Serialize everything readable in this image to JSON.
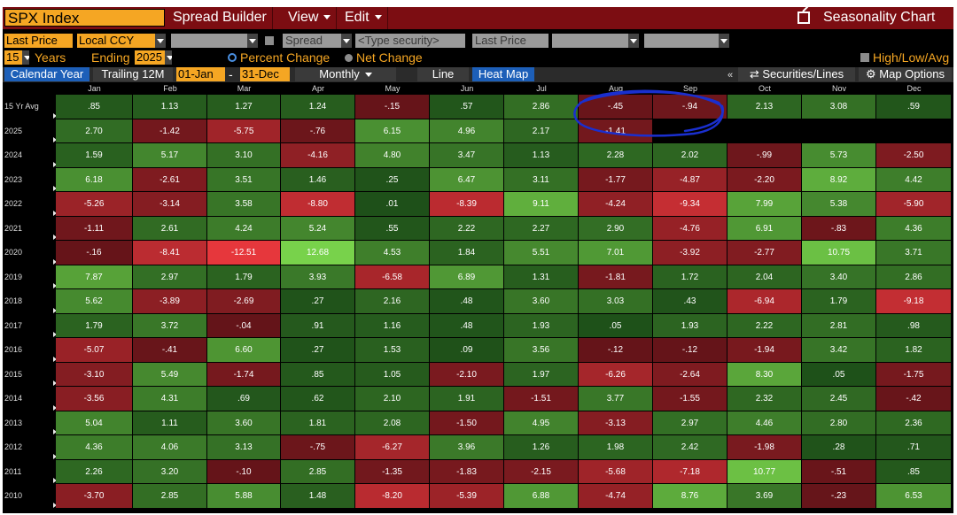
{
  "header": {
    "ticker": "SPX Index",
    "menus": [
      {
        "label": "Spread Builder",
        "caret": false
      },
      {
        "label": "View",
        "caret": true
      },
      {
        "label": "Edit",
        "caret": true
      }
    ],
    "title": "Seasonality Chart"
  },
  "toolbar": {
    "price_field": "Last Price",
    "currency": "Local CCY",
    "spread": "Spread",
    "security_placeholder": "<Type security>",
    "price_field_2": "Last Price",
    "high_low": "High/Low/Avg"
  },
  "options": {
    "years": "15",
    "years_label": "Years",
    "ending_label": "Ending",
    "ending_year": "2025",
    "percent_change": "Percent Change",
    "net_change": "Net Change"
  },
  "controls": {
    "calendar_year": "Calendar Year",
    "trailing": "Trailing 12M",
    "start_date": "01-Jan",
    "dash": "-",
    "end_date": "31-Dec",
    "period": "Monthly",
    "line": "Line",
    "heat_map": "Heat Map",
    "securities": "Securities/Lines",
    "map_options": "Map Options"
  },
  "colors": {
    "orange": "#f5a623",
    "topbar": "#7c0d12",
    "active_blue": "#1d5fb8",
    "annotation": "#1a2fcf"
  },
  "months": [
    "Jan",
    "Feb",
    "Mar",
    "Apr",
    "May",
    "Jun",
    "Jul",
    "Aug",
    "Sep",
    "Oct",
    "Nov",
    "Dec"
  ],
  "rows": [
    {
      "label": "15 Yr Avg",
      "values": [
        ".85",
        "1.13",
        "1.27",
        "1.24",
        "-.15",
        ".57",
        "2.86",
        "-.45",
        "-.94",
        "2.13",
        "3.08",
        ".59"
      ]
    },
    {
      "label": "2025",
      "values": [
        "2.70",
        "-1.42",
        "-5.75",
        "-.76",
        "6.15",
        "4.96",
        "2.17",
        "-1.41",
        "",
        "",
        "",
        ""
      ]
    },
    {
      "label": "2024",
      "values": [
        "1.59",
        "5.17",
        "3.10",
        "-4.16",
        "4.80",
        "3.47",
        "1.13",
        "2.28",
        "2.02",
        "-.99",
        "5.73",
        "-2.50"
      ]
    },
    {
      "label": "2023",
      "values": [
        "6.18",
        "-2.61",
        "3.51",
        "1.46",
        ".25",
        "6.47",
        "3.11",
        "-1.77",
        "-4.87",
        "-2.20",
        "8.92",
        "4.42"
      ]
    },
    {
      "label": "2022",
      "values": [
        "-5.26",
        "-3.14",
        "3.58",
        "-8.80",
        ".01",
        "-8.39",
        "9.11",
        "-4.24",
        "-9.34",
        "7.99",
        "5.38",
        "-5.90"
      ]
    },
    {
      "label": "2021",
      "values": [
        "-1.11",
        "2.61",
        "4.24",
        "5.24",
        ".55",
        "2.22",
        "2.27",
        "2.90",
        "-4.76",
        "6.91",
        "-.83",
        "4.36"
      ]
    },
    {
      "label": "2020",
      "values": [
        "-.16",
        "-8.41",
        "-12.51",
        "12.68",
        "4.53",
        "1.84",
        "5.51",
        "7.01",
        "-3.92",
        "-2.77",
        "10.75",
        "3.71"
      ]
    },
    {
      "label": "2019",
      "values": [
        "7.87",
        "2.97",
        "1.79",
        "3.93",
        "-6.58",
        "6.89",
        "1.31",
        "-1.81",
        "1.72",
        "2.04",
        "3.40",
        "2.86"
      ]
    },
    {
      "label": "2018",
      "values": [
        "5.62",
        "-3.89",
        "-2.69",
        ".27",
        "2.16",
        ".48",
        "3.60",
        "3.03",
        ".43",
        "-6.94",
        "1.79",
        "-9.18"
      ]
    },
    {
      "label": "2017",
      "values": [
        "1.79",
        "3.72",
        "-.04",
        ".91",
        "1.16",
        ".48",
        "1.93",
        ".05",
        "1.93",
        "2.22",
        "2.81",
        ".98"
      ]
    },
    {
      "label": "2016",
      "values": [
        "-5.07",
        "-.41",
        "6.60",
        ".27",
        "1.53",
        ".09",
        "3.56",
        "-.12",
        "-.12",
        "-1.94",
        "3.42",
        "1.82"
      ]
    },
    {
      "label": "2015",
      "values": [
        "-3.10",
        "5.49",
        "-1.74",
        ".85",
        "1.05",
        "-2.10",
        "1.97",
        "-6.26",
        "-2.64",
        "8.30",
        ".05",
        "-1.75"
      ]
    },
    {
      "label": "2014",
      "values": [
        "-3.56",
        "4.31",
        ".69",
        ".62",
        "2.10",
        "1.91",
        "-1.51",
        "3.77",
        "-1.55",
        "2.32",
        "2.45",
        "-.42"
      ]
    },
    {
      "label": "2013",
      "values": [
        "5.04",
        "1.11",
        "3.60",
        "1.81",
        "2.08",
        "-1.50",
        "4.95",
        "-3.13",
        "2.97",
        "4.46",
        "2.80",
        "2.36"
      ]
    },
    {
      "label": "2012",
      "values": [
        "4.36",
        "4.06",
        "3.13",
        "-.75",
        "-6.27",
        "3.96",
        "1.26",
        "1.98",
        "2.42",
        "-1.98",
        ".28",
        ".71"
      ]
    },
    {
      "label": "2011",
      "values": [
        "2.26",
        "3.20",
        "-.10",
        "2.85",
        "-1.35",
        "-1.83",
        "-2.15",
        "-5.68",
        "-7.18",
        "10.77",
        "-.51",
        ".85"
      ]
    },
    {
      "label": "2010",
      "values": [
        "-3.70",
        "2.85",
        "5.88",
        "1.48",
        "-8.20",
        "-5.39",
        "6.88",
        "-4.74",
        "8.76",
        "3.69",
        "-.23",
        "6.53"
      ]
    }
  ]
}
